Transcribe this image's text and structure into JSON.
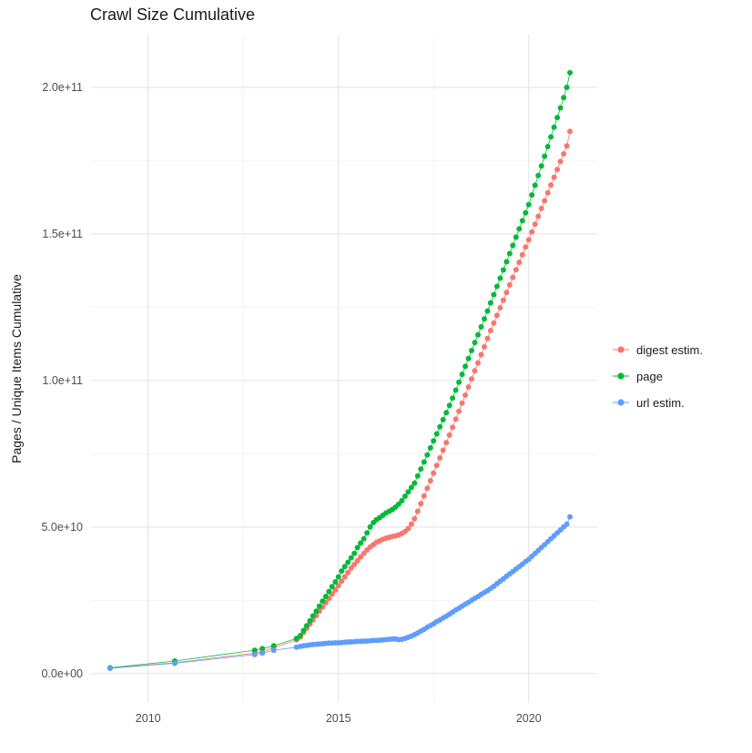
{
  "page": {
    "background": "#ffffff"
  },
  "chart_data": {
    "type": "scatter",
    "title": "Crawl Size Cumulative",
    "xlabel": "",
    "ylabel": "Pages / Unique Items Cumulative",
    "legend_position": "right",
    "grid": "major and minor, light gray on white",
    "x_range": [
      2008.5,
      2021.8
    ],
    "y_range": [
      -10,
      218
    ],
    "y_unit_multiplier": 1000000000,
    "x_ticks": {
      "values": [
        2010,
        2015,
        2020
      ],
      "labels": [
        "2010",
        "2015",
        "2020"
      ]
    },
    "x_minor_ticks": [
      2012.5,
      2017.5
    ],
    "y_ticks": {
      "values": [
        0,
        50,
        100,
        150,
        200
      ],
      "labels": [
        "0.0e+00",
        "5.0e+10",
        "1.0e+11",
        "1.5e+11",
        "2.0e+11"
      ]
    },
    "y_minor_ticks": [
      25,
      75,
      125,
      175
    ],
    "x": [
      2009.0,
      2010.7,
      2012.8,
      2013.0,
      2013.3,
      2013.9,
      2014.0,
      2014.083,
      2014.167,
      2014.25,
      2014.333,
      2014.417,
      2014.5,
      2014.583,
      2014.667,
      2014.75,
      2014.833,
      2014.917,
      2015.0,
      2015.083,
      2015.167,
      2015.25,
      2015.333,
      2015.417,
      2015.5,
      2015.583,
      2015.667,
      2015.75,
      2015.833,
      2015.917,
      2016.0,
      2016.083,
      2016.167,
      2016.25,
      2016.333,
      2016.417,
      2016.5,
      2016.583,
      2016.667,
      2016.75,
      2016.833,
      2016.917,
      2017.0,
      2017.083,
      2017.167,
      2017.25,
      2017.333,
      2017.417,
      2017.5,
      2017.583,
      2017.667,
      2017.75,
      2017.833,
      2017.917,
      2018.0,
      2018.083,
      2018.167,
      2018.25,
      2018.333,
      2018.417,
      2018.5,
      2018.583,
      2018.667,
      2018.75,
      2018.833,
      2018.917,
      2019.0,
      2019.083,
      2019.167,
      2019.25,
      2019.333,
      2019.417,
      2019.5,
      2019.583,
      2019.667,
      2019.75,
      2019.833,
      2019.917,
      2020.0,
      2020.083,
      2020.167,
      2020.25,
      2020.333,
      2020.417,
      2020.5,
      2020.583,
      2020.667,
      2020.75,
      2020.833,
      2020.917,
      2021.0,
      2021.083
    ],
    "series": [
      {
        "name": "digest estim.",
        "color": "#F8766D",
        "values": [
          1.9,
          3.7,
          7.0,
          7.5,
          8.8,
          11.5,
          12.5,
          14.0,
          15.4,
          16.9,
          18.3,
          19.8,
          21.3,
          22.7,
          24.2,
          25.6,
          27.1,
          28.5,
          30.0,
          31.5,
          33.0,
          34.5,
          36.0,
          37.2,
          38.5,
          39.8,
          41.0,
          42.2,
          43.2,
          44.0,
          44.8,
          45.3,
          45.8,
          46.2,
          46.5,
          46.8,
          47.0,
          47.3,
          47.8,
          48.5,
          49.5,
          51.0,
          52.8,
          55.4,
          58.0,
          60.6,
          63.2,
          65.8,
          68.4,
          71.0,
          73.6,
          76.2,
          78.8,
          81.4,
          84.0,
          86.8,
          89.5,
          92.3,
          95.0,
          97.8,
          100.5,
          103.3,
          106.0,
          108.8,
          111.5,
          114.3,
          117.0,
          119.6,
          122.2,
          124.8,
          127.4,
          130.0,
          132.6,
          135.2,
          137.8,
          140.3,
          142.9,
          145.5,
          148.0,
          150.7,
          153.3,
          156.0,
          158.7,
          161.3,
          164.0,
          166.7,
          169.3,
          172.0,
          174.7,
          177.3,
          180.0,
          185.0
        ]
      },
      {
        "name": "page",
        "color": "#00BA38",
        "values": [
          2.0,
          4.3,
          8.0,
          8.5,
          9.5,
          12.0,
          13.0,
          14.7,
          16.3,
          18.0,
          19.7,
          21.3,
          23.0,
          24.7,
          26.3,
          28.0,
          29.7,
          31.3,
          33.0,
          35.0,
          36.5,
          38.0,
          39.5,
          41.0,
          43.0,
          44.5,
          46.0,
          48.0,
          50.0,
          51.5,
          52.5,
          53.2,
          54.0,
          54.8,
          55.4,
          56.0,
          56.8,
          57.8,
          59.0,
          60.5,
          62.0,
          63.5,
          65.0,
          67.4,
          69.8,
          72.2,
          74.6,
          77.0,
          79.4,
          81.8,
          84.2,
          86.6,
          89.0,
          91.5,
          94.0,
          96.7,
          99.4,
          102.1,
          104.8,
          107.5,
          110.2,
          112.9,
          115.6,
          118.3,
          121.0,
          123.7,
          126.5,
          129.3,
          132.1,
          134.9,
          137.7,
          140.5,
          143.3,
          146.1,
          148.9,
          151.7,
          154.5,
          157.2,
          160.0,
          163.3,
          166.6,
          169.9,
          173.2,
          176.5,
          179.8,
          183.1,
          186.4,
          189.7,
          193.0,
          196.5,
          200.0,
          205.0
        ]
      },
      {
        "name": "url estim.",
        "color": "#619CFF",
        "values": [
          1.8,
          3.5,
          6.5,
          7.0,
          8.0,
          9.0,
          9.3,
          9.5,
          9.6,
          9.8,
          9.9,
          10.0,
          10.1,
          10.2,
          10.3,
          10.4,
          10.4,
          10.5,
          10.5,
          10.6,
          10.7,
          10.8,
          10.8,
          10.9,
          11.0,
          11.0,
          11.1,
          11.1,
          11.2,
          11.3,
          11.3,
          11.4,
          11.5,
          11.6,
          11.7,
          11.8,
          11.8,
          11.6,
          11.7,
          12.0,
          12.4,
          12.8,
          13.3,
          13.9,
          14.5,
          15.1,
          15.8,
          16.4,
          17.0,
          17.7,
          18.3,
          19.0,
          19.6,
          20.3,
          21.0,
          21.7,
          22.3,
          23.0,
          23.7,
          24.3,
          25.0,
          25.7,
          26.3,
          27.0,
          27.7,
          28.3,
          29.0,
          29.8,
          30.7,
          31.5,
          32.3,
          33.2,
          34.0,
          34.8,
          35.7,
          36.5,
          37.3,
          38.2,
          39.0,
          40.0,
          41.0,
          42.0,
          43.0,
          44.0,
          45.0,
          46.0,
          47.0,
          48.0,
          49.0,
          50.0,
          51.0,
          53.5
        ]
      }
    ]
  }
}
